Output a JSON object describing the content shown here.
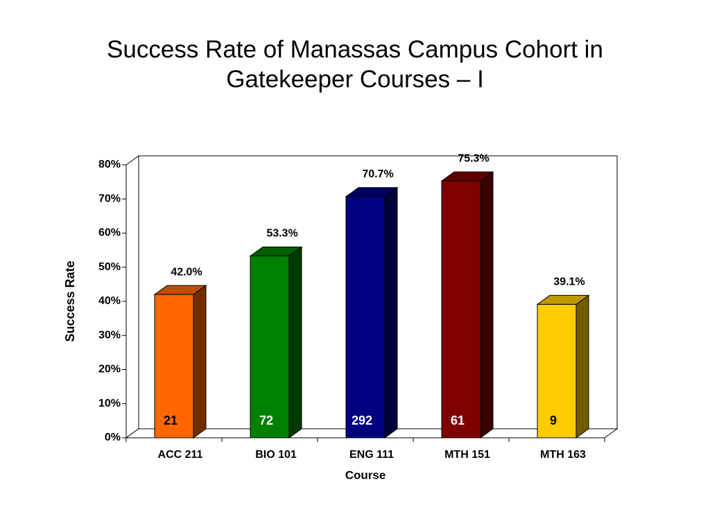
{
  "chart_data": {
    "type": "bar3d",
    "title": "Success Rate of Manassas Campus Cohort in Gatekeeper Courses – I",
    "x_label": "Course",
    "y_label": "Success Rate",
    "categories": [
      "ACC 211",
      "BIO 101",
      "ENG 111",
      "MTH 151",
      "MTH 163"
    ],
    "values": [
      42.0,
      53.3,
      70.7,
      75.3,
      39.1
    ],
    "value_labels": [
      "42.0%",
      "53.3%",
      "70.7%",
      "75.3%",
      "39.1%"
    ],
    "colors": [
      "#ff6600",
      "#008000",
      "#000080",
      "#800000",
      "#ffcc00"
    ],
    "counts": [
      21,
      72,
      292,
      61,
      9
    ],
    "count_label_colors": [
      "#000000",
      "#ffffff",
      "#ffffff",
      "#ffffff",
      "#000000"
    ],
    "ylim": [
      0,
      80
    ],
    "yticks": [
      {
        "value": 0,
        "label": "0%"
      },
      {
        "value": 10,
        "label": "10%"
      },
      {
        "value": 20,
        "label": "20%"
      },
      {
        "value": 30,
        "label": "30%"
      },
      {
        "value": 40,
        "label": "40%"
      },
      {
        "value": 50,
        "label": "50%"
      },
      {
        "value": 60,
        "label": "60%"
      },
      {
        "value": 70,
        "label": "70%"
      },
      {
        "value": 80,
        "label": "80%"
      }
    ]
  }
}
